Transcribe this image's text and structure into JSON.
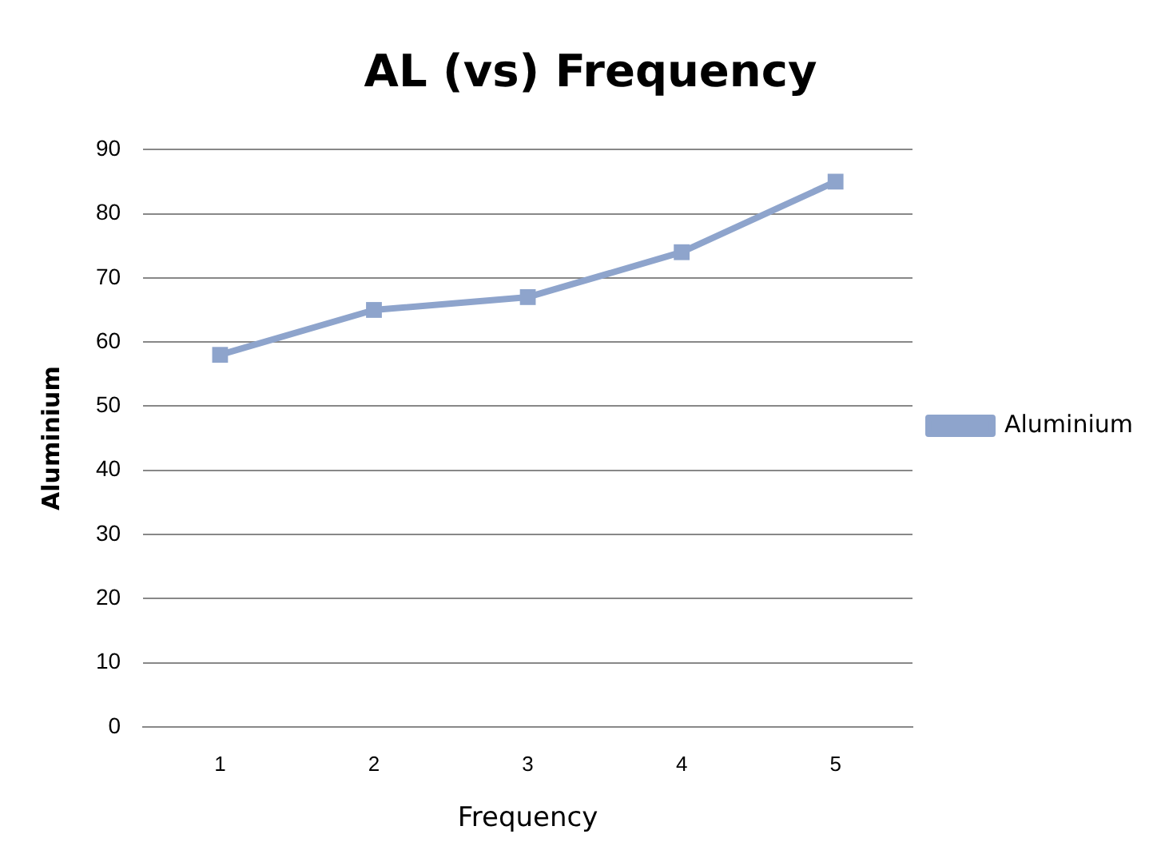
{
  "chart_data": {
    "type": "line",
    "title": "AL (vs) Frequency",
    "xlabel": "Frequency",
    "ylabel": "Aluminium",
    "categories": [
      "1",
      "2",
      "3",
      "4",
      "5"
    ],
    "series": [
      {
        "name": "Aluminium",
        "color": "#8ea4cc",
        "values": [
          58,
          65,
          67,
          74,
          85
        ]
      }
    ],
    "ylim": [
      0,
      90
    ],
    "yticks": [
      0,
      10,
      20,
      30,
      40,
      50,
      60,
      70,
      80,
      90
    ],
    "grid": "y",
    "legend": "right",
    "marker": "square",
    "line_style": "solid"
  }
}
